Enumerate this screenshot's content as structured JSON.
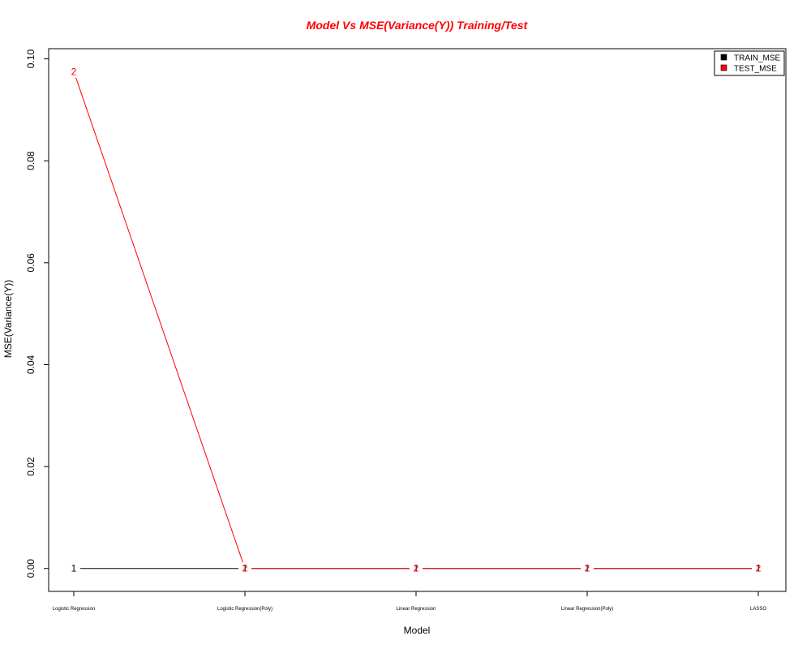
{
  "chart_data": {
    "type": "line",
    "title": "Model Vs MSE(Variance(Y)) Training/Test",
    "xlabel": "Model",
    "ylabel": "MSE(Variance(Y))",
    "categories": [
      "Logistic Regression",
      "Logistic Regression(Poly)",
      "Linear Regression",
      "Linear Regression(Poly)",
      "LASSO"
    ],
    "yticks": [
      "0.00",
      "0.02",
      "0.04",
      "0.06",
      "0.08",
      "0.10"
    ],
    "ylim": [
      -0.0045,
      0.102
    ],
    "grid": false,
    "legend_position": "top-right",
    "series": [
      {
        "name": "TRAIN_MSE",
        "marker": "1",
        "color": "#000000",
        "values": [
          0,
          0,
          0,
          0,
          0
        ]
      },
      {
        "name": "TEST_MSE",
        "marker": "2",
        "color": "#ff0000",
        "values": [
          0.0975,
          0,
          0,
          0,
          0
        ]
      }
    ]
  }
}
